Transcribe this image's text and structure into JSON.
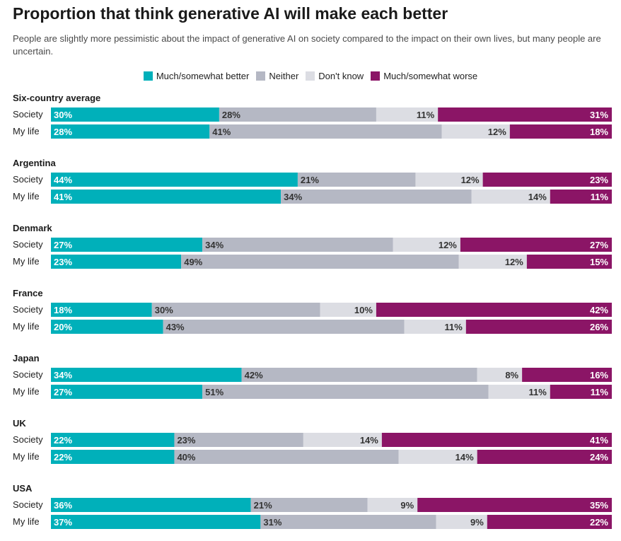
{
  "header": {
    "title": "Proportion that think generative AI will make each better",
    "subtitle": "People are slightly more pessimistic about the impact of generative AI on society compared to the impact on their own lives, but many people are uncertain."
  },
  "colors": {
    "better": "#00b0ba",
    "neither": "#b5b8c4",
    "dont_know": "#dcdde3",
    "worse": "#8b1566"
  },
  "chart_data": {
    "type": "bar",
    "orientation": "horizontal-stacked-100",
    "xlim": [
      0,
      100
    ],
    "unit": "%",
    "series": [
      {
        "key": "better",
        "name": "Much/somewhat better"
      },
      {
        "key": "neither",
        "name": "Neither"
      },
      {
        "key": "dont_know",
        "name": "Don't know"
      },
      {
        "key": "worse",
        "name": "Much/somewhat worse"
      }
    ],
    "legend_position": "top-center",
    "groups": [
      {
        "name": "Six-country average",
        "rows": [
          {
            "label": "Society",
            "values": [
              30,
              28,
              11,
              31
            ]
          },
          {
            "label": "My life",
            "values": [
              28,
              41,
              12,
              18
            ]
          }
        ]
      },
      {
        "name": "Argentina",
        "rows": [
          {
            "label": "Society",
            "values": [
              44,
              21,
              12,
              23
            ]
          },
          {
            "label": "My life",
            "values": [
              41,
              34,
              14,
              11
            ]
          }
        ]
      },
      {
        "name": "Denmark",
        "rows": [
          {
            "label": "Society",
            "values": [
              27,
              34,
              12,
              27
            ]
          },
          {
            "label": "My life",
            "values": [
              23,
              49,
              12,
              15
            ]
          }
        ]
      },
      {
        "name": "France",
        "rows": [
          {
            "label": "Society",
            "values": [
              18,
              30,
              10,
              42
            ]
          },
          {
            "label": "My life",
            "values": [
              20,
              43,
              11,
              26
            ]
          }
        ]
      },
      {
        "name": "Japan",
        "rows": [
          {
            "label": "Society",
            "values": [
              34,
              42,
              8,
              16
            ]
          },
          {
            "label": "My life",
            "values": [
              27,
              51,
              11,
              11
            ]
          }
        ]
      },
      {
        "name": "UK",
        "rows": [
          {
            "label": "Society",
            "values": [
              22,
              23,
              14,
              41
            ]
          },
          {
            "label": "My life",
            "values": [
              22,
              40,
              14,
              24
            ]
          }
        ]
      },
      {
        "name": "USA",
        "rows": [
          {
            "label": "Society",
            "values": [
              36,
              21,
              9,
              35
            ]
          },
          {
            "label": "My life",
            "values": [
              37,
              31,
              9,
              22
            ]
          }
        ]
      }
    ]
  }
}
